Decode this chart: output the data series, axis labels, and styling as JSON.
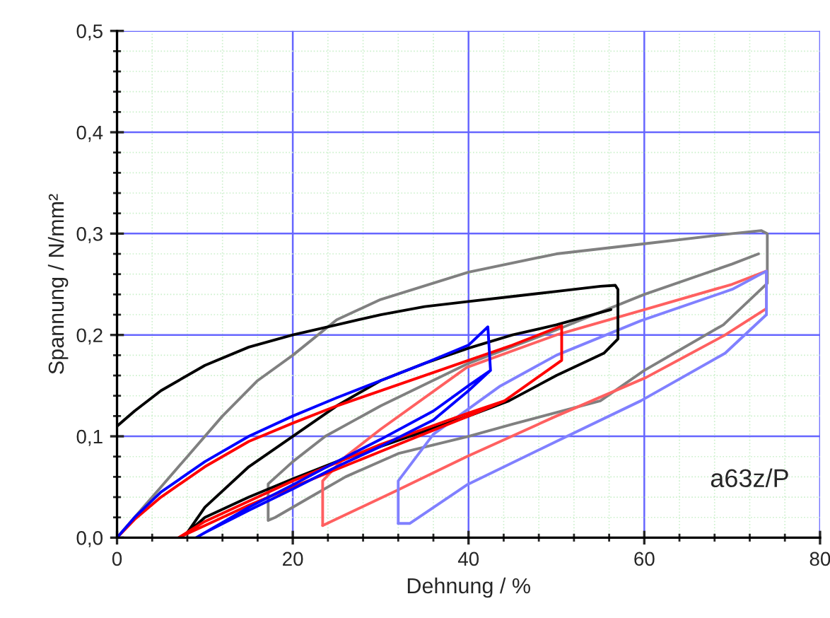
{
  "chart_data": {
    "type": "line",
    "xlabel": "Dehnung / %",
    "ylabel": "Spannung / N/mm²",
    "xlim": [
      0,
      80
    ],
    "ylim": [
      0,
      0.5
    ],
    "xticks": [
      0,
      20,
      40,
      60,
      80
    ],
    "yticks": [
      {
        "value": 0,
        "label": "0,0"
      },
      {
        "value": 0.1,
        "label": "0,1"
      },
      {
        "value": 0.2,
        "label": "0,2"
      },
      {
        "value": 0.3,
        "label": "0,3"
      },
      {
        "value": 0.4,
        "label": "0,4"
      },
      {
        "value": 0.5,
        "label": "0,5"
      }
    ],
    "grid": true,
    "annotations": [
      "a63z/P"
    ],
    "series": [
      {
        "color": "#808080",
        "x": [
          0,
          3,
          5,
          8,
          12,
          16,
          20,
          25,
          30,
          40,
          50,
          60,
          70,
          73.3,
          74,
          74,
          69,
          60,
          55,
          45,
          40,
          32,
          26,
          22,
          18,
          17.2,
          17.2,
          20,
          23.7,
          30,
          40,
          50,
          60,
          70,
          73
        ],
        "values": [
          0,
          0.03,
          0.05,
          0.08,
          0.12,
          0.155,
          0.18,
          0.215,
          0.235,
          0.262,
          0.28,
          0.29,
          0.3,
          0.303,
          0.3,
          0.251,
          0.21,
          0.165,
          0.135,
          0.112,
          0.1,
          0.083,
          0.06,
          0.04,
          0.02,
          0.017,
          0.053,
          0.075,
          0.1,
          0.13,
          0.172,
          0.205,
          0.24,
          0.27,
          0.28
        ]
      },
      {
        "color": "#ff6060",
        "x": [
          23.4,
          23.4,
          26,
          30,
          39.8,
          50,
          59.6,
          70,
          73.9,
          73.9
        ],
        "values": [
          0.012,
          0.056,
          0.08,
          0.107,
          0.168,
          0.2,
          0.224,
          0.25,
          0.263,
          0.226
        ]
      },
      {
        "color": "#ff6060",
        "x": [
          23.4,
          31.7,
          39.8,
          50,
          60.2,
          69.2,
          73.9
        ],
        "values": [
          0.012,
          0.046,
          0.08,
          0.12,
          0.158,
          0.2,
          0.226
        ]
      },
      {
        "color": "#8080ff",
        "x": [
          32,
          32,
          36,
          43.5,
          50,
          59.6,
          70,
          73.9,
          73.9
        ],
        "values": [
          0.014,
          0.056,
          0.102,
          0.149,
          0.18,
          0.214,
          0.245,
          0.263,
          0.22
        ]
      },
      {
        "color": "#8080ff",
        "x": [
          32,
          33.3,
          39.8,
          50,
          59.6,
          69.2,
          73.9
        ],
        "values": [
          0.014,
          0.014,
          0.052,
          0.095,
          0.135,
          0.182,
          0.22
        ]
      },
      {
        "color": "#000000",
        "x": [
          0,
          2,
          5,
          10,
          15,
          20,
          25,
          30,
          35,
          40,
          45,
          50,
          55,
          56.7,
          57,
          57,
          55.4,
          50,
          44.6,
          40,
          35,
          30,
          25,
          20,
          15,
          10,
          8,
          10,
          15,
          20,
          25,
          30,
          35,
          40,
          45,
          50,
          56.2
        ],
        "values": [
          0.11,
          0.125,
          0.145,
          0.17,
          0.188,
          0.2,
          0.21,
          0.22,
          0.228,
          0.233,
          0.238,
          0.243,
          0.248,
          0.249,
          0.245,
          0.196,
          0.182,
          0.16,
          0.135,
          0.12,
          0.105,
          0.09,
          0.075,
          0.058,
          0.04,
          0.02,
          0.005,
          0.03,
          0.07,
          0.1,
          0.13,
          0.155,
          0.172,
          0.187,
          0.2,
          0.21,
          0.225
        ]
      },
      {
        "color": "#ff0000",
        "x": [
          0,
          2,
          5,
          10,
          15,
          20,
          25,
          30,
          35,
          40,
          45,
          50.6,
          50.6,
          44.1,
          40,
          30,
          20,
          15,
          10,
          7,
          10,
          15,
          20,
          30,
          40,
          44.1
        ],
        "values": [
          0,
          0.018,
          0.04,
          0.07,
          0.095,
          0.113,
          0.13,
          0.145,
          0.16,
          0.175,
          0.19,
          0.209,
          0.175,
          0.135,
          0.12,
          0.085,
          0.05,
          0.032,
          0.012,
          0,
          0.016,
          0.036,
          0.056,
          0.092,
          0.123,
          0.135
        ]
      },
      {
        "color": "#0000ff",
        "x": [
          0,
          2,
          5,
          10,
          15,
          20,
          25,
          30,
          35,
          40,
          42.2,
          42.5,
          40,
          36,
          30,
          25,
          20,
          15,
          10,
          9,
          15,
          20,
          25,
          30,
          36,
          40,
          42.5
        ],
        "values": [
          0,
          0.02,
          0.045,
          0.075,
          0.1,
          0.12,
          0.138,
          0.155,
          0.172,
          0.19,
          0.208,
          0.165,
          0.145,
          0.116,
          0.09,
          0.07,
          0.048,
          0.027,
          0.005,
          0,
          0.03,
          0.052,
          0.075,
          0.097,
          0.125,
          0.15,
          0.165
        ]
      }
    ]
  }
}
